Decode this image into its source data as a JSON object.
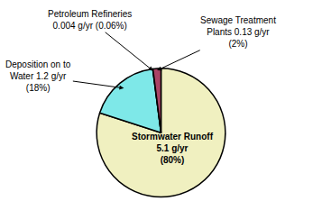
{
  "chart_data": {
    "type": "pie",
    "values": [
      80.0,
      18.0,
      0.06,
      2.0
    ],
    "colors": [
      "#f0f0c0",
      "#7ee8e8",
      "#2244cc",
      "#aa4466"
    ],
    "value_labels": [
      "Stormwater Runoff\n5.1 g/yr\n(80%)",
      "Deposition on to\nWater 1.2 g/yr\n(18%)",
      "Petroleum Refineries\n0.004 g/yr (0.06%)",
      "Sewage Treatment\nPlants 0.13 g/yr\n(2%)"
    ],
    "data_labels": true
  }
}
